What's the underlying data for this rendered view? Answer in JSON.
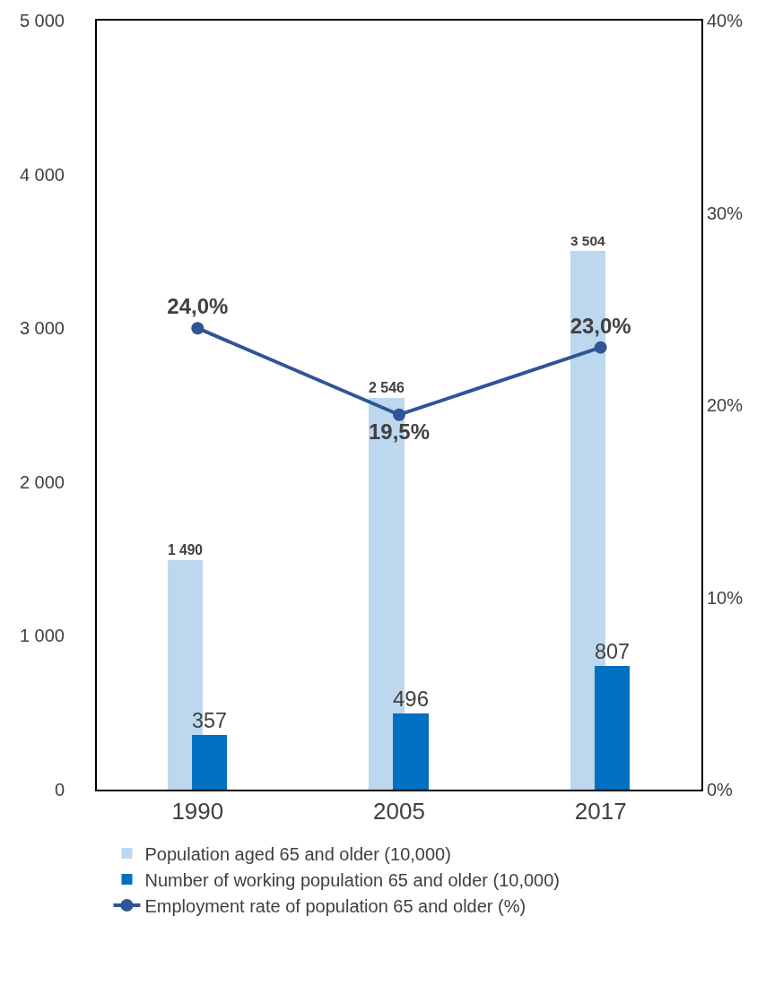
{
  "chart_data": {
    "type": "bar",
    "categories": [
      "1990",
      "2005",
      "2017"
    ],
    "series": [
      {
        "name": "Population aged 65 and older (10,000)",
        "color": "#bdd7ee",
        "values": [
          1490,
          2546,
          3504
        ],
        "value_labels": [
          "1 490",
          "2 546",
          "3 504"
        ]
      },
      {
        "name": "Number of working population 65 and older (10,000)",
        "color": "#0070c0",
        "values": [
          357,
          496,
          807
        ],
        "value_labels": [
          "357",
          "496",
          "807"
        ]
      },
      {
        "name": "Employment rate of population 65 and older (%)",
        "type": "line",
        "axis": "y2",
        "color": "#2f5597",
        "values": [
          24.0,
          19.5,
          23.0
        ],
        "value_labels": [
          "24,0%",
          "19,5%",
          "23,0%"
        ],
        "marker": "circle",
        "line_style": "solid"
      }
    ],
    "ylim": [
      0,
      5000
    ],
    "yticks": [
      0,
      {
        "value": 1000,
        "label": "1 000"
      },
      {
        "value": 2000,
        "label": "2 000"
      },
      {
        "value": 3000,
        "label": "3 000"
      },
      {
        "value": 4000,
        "label": "4 000"
      },
      {
        "value": 5000,
        "label": "5 000"
      }
    ],
    "y2lim": [
      0,
      40
    ],
    "y2ticks": [
      {
        "value": 0,
        "label": "0%"
      },
      {
        "value": 10,
        "label": "10%"
      },
      {
        "value": 20,
        "label": "20%"
      },
      {
        "value": 30,
        "label": "30%"
      },
      {
        "value": 40,
        "label": "40%"
      }
    ],
    "grid": false,
    "legend": "bottom"
  }
}
